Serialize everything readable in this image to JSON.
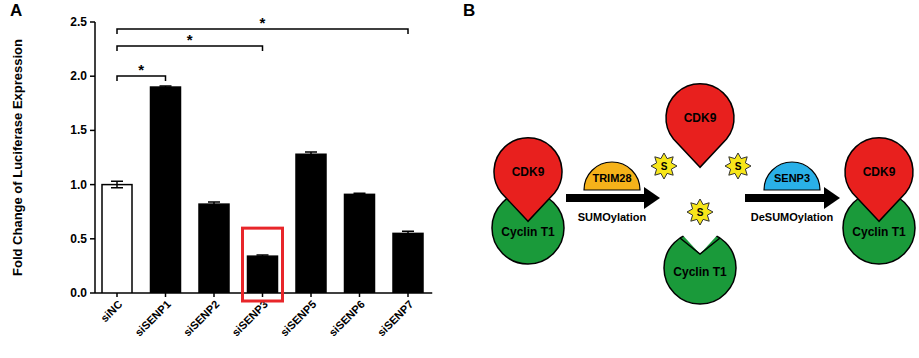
{
  "panel_labels": [
    "A",
    "B"
  ],
  "chart_data": {
    "type": "bar",
    "y_label": "Fold Change of Luciferase Expression",
    "categories": [
      "siNC",
      "siSENP1",
      "siSENP2",
      "siSENP3",
      "siSENP5",
      "siSENP6",
      "siSENP7"
    ],
    "values": [
      1.0,
      1.9,
      0.82,
      0.34,
      1.28,
      0.91,
      0.55
    ],
    "errors": [
      0.03,
      0.01,
      0.02,
      0.01,
      0.02,
      0.01,
      0.02
    ],
    "colors": [
      "#ffffff",
      "#000000",
      "#000000",
      "#000000",
      "#000000",
      "#000000",
      "#000000"
    ],
    "ylim": [
      0,
      2.5
    ],
    "yticks": [
      {
        "value": 0,
        "label": "0.0"
      },
      0.5,
      {
        "value": 1,
        "label": "1.0"
      },
      1.5,
      {
        "value": 2,
        "label": "2.0"
      },
      2.5
    ],
    "grid": false,
    "annotations": [
      {
        "from": "siNC",
        "to": "siSENP1",
        "text": "*"
      },
      {
        "from": "siNC",
        "to": "siSENP3",
        "text": "*"
      },
      {
        "from": "siNC",
        "to": "siSENP7",
        "text": "*"
      },
      {
        "box": "siSENP3",
        "color": "#e8262a"
      }
    ]
  },
  "diagram": {
    "complexes": [
      {
        "top": "CDK9",
        "bottom": "Cyclin T1"
      },
      {
        "top": "CDK9",
        "bottom": "Cyclin T1",
        "marks": [
          "S",
          "S",
          "S"
        ]
      },
      {
        "top": "CDK9",
        "bottom": "Cyclin T1"
      }
    ],
    "steps": [
      {
        "enzyme": "TRIM28",
        "label": "SUMOylation",
        "color": "#f5b21a"
      },
      {
        "enzyme": "SENP3",
        "label": "DeSUMOylation",
        "color": "#2ab0e8"
      }
    ]
  }
}
